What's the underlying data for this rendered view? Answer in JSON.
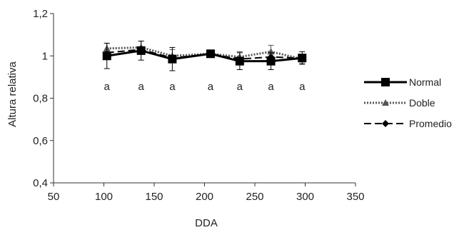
{
  "chart_data": {
    "type": "line",
    "title": "",
    "xlabel": "DDA",
    "ylabel": "Altura relativa",
    "xlim": [
      50,
      350
    ],
    "ylim": [
      0.4,
      1.2
    ],
    "xticks": [
      50,
      100,
      150,
      200,
      250,
      300,
      350
    ],
    "yticks": [
      0.4,
      0.6,
      0.8,
      1.0,
      1.2
    ],
    "xtick_labels": [
      "50",
      "100",
      "150",
      "200",
      "250",
      "300",
      "350"
    ],
    "ytick_labels": [
      "0,4",
      "0,6",
      "0,8",
      "1",
      "1,2"
    ],
    "grid": false,
    "legend_position": "right",
    "series": [
      {
        "name": "Normal",
        "marker": "square",
        "line": "solid",
        "color": "#000000",
        "x": [
          103,
          137,
          168,
          206,
          235,
          266,
          297
        ],
        "y": [
          1.0,
          1.025,
          0.985,
          1.01,
          0.975,
          0.975,
          0.99
        ],
        "err": [
          0.06,
          0.045,
          0.055,
          0.015,
          0.04,
          0.04,
          0.03
        ]
      },
      {
        "name": "Doble",
        "marker": "triangle",
        "line": "dotted",
        "color": "#555555",
        "x": [
          103,
          137,
          168,
          206,
          235,
          266,
          297
        ],
        "y": [
          1.035,
          1.04,
          1.0,
          1.01,
          0.995,
          1.02,
          0.985
        ],
        "err": [
          0.025,
          0.03,
          0.03,
          0.015,
          0.025,
          0.03,
          0.02
        ]
      },
      {
        "name": "Promedio",
        "marker": "diamond",
        "line": "dashed",
        "color": "#000000",
        "x": [
          103,
          137,
          168,
          206,
          235,
          266,
          297
        ],
        "y": [
          1.015,
          1.03,
          0.99,
          1.01,
          0.985,
          0.995,
          0.99
        ],
        "err": []
      }
    ],
    "annotations": [
      {
        "x": 103,
        "y": 0.855,
        "text": "a"
      },
      {
        "x": 137,
        "y": 0.855,
        "text": "a"
      },
      {
        "x": 168,
        "y": 0.855,
        "text": "a"
      },
      {
        "x": 206,
        "y": 0.855,
        "text": "a"
      },
      {
        "x": 235,
        "y": 0.855,
        "text": "a"
      },
      {
        "x": 266,
        "y": 0.855,
        "text": "a"
      },
      {
        "x": 297,
        "y": 0.855,
        "text": "a"
      }
    ]
  }
}
